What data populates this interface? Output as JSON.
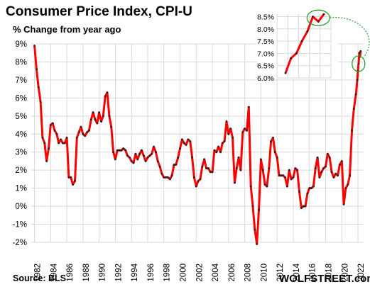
{
  "title": "Consumer  Price Index, CPI-U",
  "subtitle": "% Change from year ago",
  "source": "Source: BLS",
  "brand": "WOLFSTREET.com",
  "colors": {
    "line": "#ff0000",
    "markers": "#222222",
    "grid": "#d9d9d9",
    "callout": "#2ca02c"
  },
  "chart_data": [
    {
      "type": "line",
      "title": "Consumer  Price Index, CPI-U",
      "ylabel": "% Change from year ago",
      "xlim": [
        1981.6,
        2022.7
      ],
      "ylim": [
        -2,
        9
      ],
      "grid": true,
      "legend": "none",
      "y_ticks": [
        "-2%",
        "-1%",
        "0%",
        "1%",
        "2%",
        "3%",
        "4%",
        "5%",
        "6%",
        "7%",
        "8%",
        "9%"
      ],
      "x_ticks": [
        "1982",
        "1984",
        "1986",
        "1988",
        "1990",
        "1992",
        "1994",
        "1996",
        "1998",
        "2000",
        "2002",
        "2004",
        "2006",
        "2008",
        "2010",
        "2012",
        "2014",
        "2016",
        "2018",
        "2020",
        "2022"
      ],
      "series": [
        {
          "points": [
            [
              1982.0,
              8.9
            ],
            [
              1982.25,
              7.6
            ],
            [
              1982.5,
              6.6
            ],
            [
              1982.75,
              5.8
            ],
            [
              1983.0,
              3.8
            ],
            [
              1983.25,
              3.5
            ],
            [
              1983.5,
              2.5
            ],
            [
              1983.75,
              3.2
            ],
            [
              1984.0,
              4.5
            ],
            [
              1984.25,
              4.6
            ],
            [
              1984.5,
              4.2
            ],
            [
              1984.75,
              4.0
            ],
            [
              1985.0,
              3.5
            ],
            [
              1985.25,
              3.7
            ],
            [
              1985.5,
              3.5
            ],
            [
              1985.75,
              3.5
            ],
            [
              1986.0,
              3.8
            ],
            [
              1986.25,
              1.6
            ],
            [
              1986.5,
              1.6
            ],
            [
              1986.75,
              1.2
            ],
            [
              1987.0,
              1.4
            ],
            [
              1987.25,
              3.8
            ],
            [
              1987.5,
              4.1
            ],
            [
              1987.75,
              4.4
            ],
            [
              1988.0,
              4.0
            ],
            [
              1988.25,
              3.9
            ],
            [
              1988.5,
              4.1
            ],
            [
              1988.75,
              4.2
            ],
            [
              1989.0,
              4.8
            ],
            [
              1989.25,
              5.2
            ],
            [
              1989.5,
              4.8
            ],
            [
              1989.75,
              4.6
            ],
            [
              1990.0,
              5.2
            ],
            [
              1990.25,
              4.7
            ],
            [
              1990.5,
              5.0
            ],
            [
              1990.75,
              6.1
            ],
            [
              1991.0,
              6.3
            ],
            [
              1991.25,
              5.0
            ],
            [
              1991.5,
              4.4
            ],
            [
              1991.75,
              3.0
            ],
            [
              1992.0,
              2.6
            ],
            [
              1992.25,
              3.1
            ],
            [
              1992.5,
              3.1
            ],
            [
              1992.75,
              3.1
            ],
            [
              1993.0,
              3.2
            ],
            [
              1993.25,
              3.1
            ],
            [
              1993.5,
              2.8
            ],
            [
              1993.75,
              2.7
            ],
            [
              1994.0,
              2.5
            ],
            [
              1994.25,
              2.4
            ],
            [
              1994.5,
              2.9
            ],
            [
              1994.75,
              2.6
            ],
            [
              1995.0,
              2.9
            ],
            [
              1995.25,
              3.1
            ],
            [
              1995.5,
              2.8
            ],
            [
              1995.75,
              2.5
            ],
            [
              1996.0,
              2.7
            ],
            [
              1996.25,
              2.8
            ],
            [
              1996.5,
              2.9
            ],
            [
              1996.75,
              3.3
            ],
            [
              1997.0,
              3.0
            ],
            [
              1997.25,
              2.5
            ],
            [
              1997.5,
              2.2
            ],
            [
              1997.75,
              1.8
            ],
            [
              1998.0,
              1.6
            ],
            [
              1998.25,
              1.6
            ],
            [
              1998.5,
              1.6
            ],
            [
              1998.75,
              1.5
            ],
            [
              1999.0,
              1.7
            ],
            [
              1999.25,
              2.3
            ],
            [
              1999.5,
              2.3
            ],
            [
              1999.75,
              2.7
            ],
            [
              2000.0,
              3.2
            ],
            [
              2000.25,
              3.7
            ],
            [
              2000.5,
              3.5
            ],
            [
              2000.75,
              3.4
            ],
            [
              2001.0,
              3.7
            ],
            [
              2001.25,
              3.6
            ],
            [
              2001.5,
              2.7
            ],
            [
              2001.75,
              1.6
            ],
            [
              2002.0,
              1.1
            ],
            [
              2002.25,
              1.4
            ],
            [
              2002.5,
              1.5
            ],
            [
              2002.75,
              2.2
            ],
            [
              2003.0,
              2.6
            ],
            [
              2003.25,
              2.1
            ],
            [
              2003.5,
              2.1
            ],
            [
              2003.75,
              1.9
            ],
            [
              2004.0,
              1.9
            ],
            [
              2004.25,
              3.1
            ],
            [
              2004.5,
              3.0
            ],
            [
              2004.75,
              3.3
            ],
            [
              2005.0,
              3.0
            ],
            [
              2005.25,
              3.5
            ],
            [
              2005.5,
              3.6
            ],
            [
              2005.75,
              4.7
            ],
            [
              2006.0,
              4.0
            ],
            [
              2006.25,
              4.3
            ],
            [
              2006.5,
              3.8
            ],
            [
              2006.75,
              1.3
            ],
            [
              2007.0,
              2.1
            ],
            [
              2007.25,
              2.7
            ],
            [
              2007.5,
              2.0
            ],
            [
              2007.75,
              4.1
            ],
            [
              2008.0,
              4.3
            ],
            [
              2008.25,
              4.2
            ],
            [
              2008.5,
              5.5
            ],
            [
              2008.75,
              1.1
            ],
            [
              2009.0,
              0.0
            ],
            [
              2009.25,
              -1.3
            ],
            [
              2009.5,
              -2.1
            ],
            [
              2009.75,
              -0.2
            ],
            [
              2010.0,
              2.6
            ],
            [
              2010.25,
              2.0
            ],
            [
              2010.5,
              1.2
            ],
            [
              2010.75,
              1.1
            ],
            [
              2011.0,
              2.1
            ],
            [
              2011.25,
              3.6
            ],
            [
              2011.5,
              3.8
            ],
            [
              2011.75,
              3.0
            ],
            [
              2012.0,
              2.7
            ],
            [
              2012.25,
              1.7
            ],
            [
              2012.5,
              1.7
            ],
            [
              2012.75,
              1.7
            ],
            [
              2013.0,
              1.6
            ],
            [
              2013.25,
              1.1
            ],
            [
              2013.5,
              2.0
            ],
            [
              2013.75,
              1.5
            ],
            [
              2014.0,
              1.6
            ],
            [
              2014.25,
              2.1
            ],
            [
              2014.5,
              2.0
            ],
            [
              2014.75,
              0.8
            ],
            [
              2015.0,
              -0.1
            ],
            [
              2015.25,
              0.0
            ],
            [
              2015.5,
              0.0
            ],
            [
              2015.75,
              0.7
            ],
            [
              2016.0,
              1.0
            ],
            [
              2016.25,
              1.0
            ],
            [
              2016.5,
              1.1
            ],
            [
              2016.75,
              2.1
            ],
            [
              2017.0,
              2.7
            ],
            [
              2017.25,
              1.6
            ],
            [
              2017.5,
              1.9
            ],
            [
              2017.75,
              2.1
            ],
            [
              2018.0,
              2.2
            ],
            [
              2018.25,
              2.9
            ],
            [
              2018.5,
              2.7
            ],
            [
              2018.75,
              1.9
            ],
            [
              2019.0,
              1.6
            ],
            [
              2019.25,
              1.8
            ],
            [
              2019.5,
              1.7
            ],
            [
              2019.75,
              2.3
            ],
            [
              2020.0,
              2.5
            ],
            [
              2020.25,
              0.1
            ],
            [
              2020.5,
              1.0
            ],
            [
              2020.75,
              1.2
            ],
            [
              2021.0,
              1.7
            ],
            [
              2021.25,
              4.2
            ],
            [
              2021.5,
              5.4
            ],
            [
              2021.75,
              6.2
            ],
            [
              2021.92,
              7.0
            ],
            [
              2022.0,
              7.5
            ],
            [
              2022.08,
              7.9
            ],
            [
              2022.17,
              8.5
            ],
            [
              2022.25,
              8.3
            ],
            [
              2022.33,
              8.6
            ]
          ]
        }
      ]
    },
    {
      "type": "line",
      "title": "",
      "ylim": [
        6.0,
        8.6
      ],
      "grid": true,
      "y_ticks": [
        "6.0%",
        "6.5%",
        "7.0%",
        "7.5%",
        "8.0%",
        "8.5%"
      ],
      "series": [
        {
          "values": [
            6.2,
            6.8,
            7.0,
            7.5,
            7.9,
            8.5,
            8.3,
            8.6
          ]
        }
      ]
    }
  ]
}
